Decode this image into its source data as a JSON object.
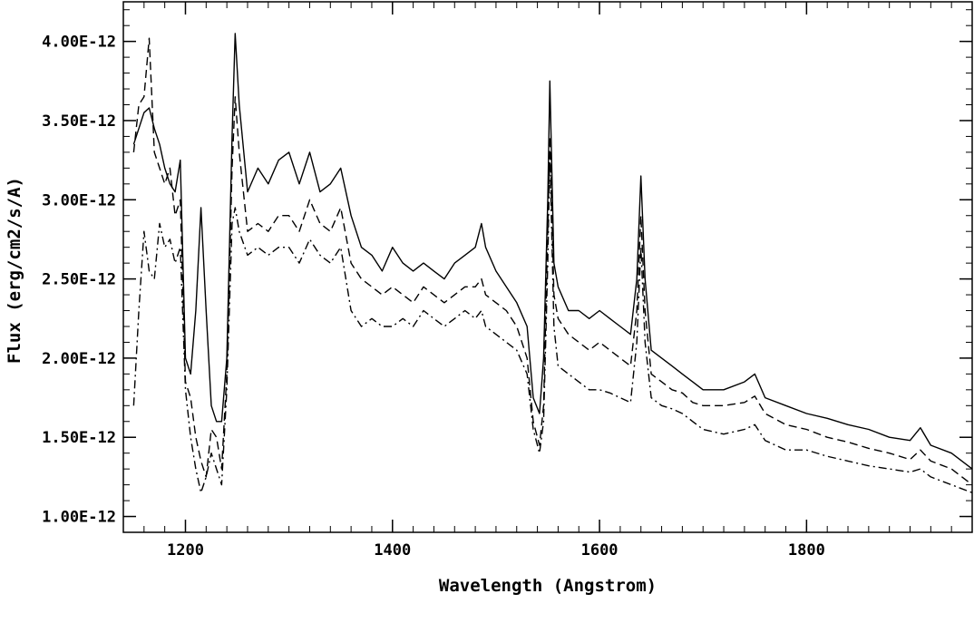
{
  "chart_data": {
    "type": "line",
    "title": "",
    "xlabel": "Wavelength (Angstrom)",
    "ylabel": "Flux (erg/cm2/s/A)",
    "xlim": [
      1140,
      1960
    ],
    "ylim": [
      9e-13,
      4.25e-12
    ],
    "x_ticks": [
      1200,
      1400,
      1600,
      1800
    ],
    "x_tick_labels": [
      "1200",
      "1400",
      "1600",
      "1800"
    ],
    "y_ticks": [
      1e-12,
      1.5e-12,
      2e-12,
      2.5e-12,
      3e-12,
      3.5e-12,
      4e-12
    ],
    "y_tick_labels": [
      "1.00E-12",
      "1.50E-12",
      "2.00E-12",
      "2.50E-12",
      "3.00E-12",
      "3.50E-12",
      "4.00E-12"
    ],
    "grid": false,
    "legend": "none",
    "series": [
      {
        "style": "solid",
        "x": [
          1150,
          1155,
          1160,
          1165,
          1170,
          1175,
          1180,
          1185,
          1190,
          1195,
          1200,
          1205,
          1210,
          1215,
          1220,
          1225,
          1230,
          1235,
          1240,
          1245,
          1248,
          1252,
          1260,
          1270,
          1280,
          1290,
          1300,
          1310,
          1320,
          1330,
          1340,
          1350,
          1360,
          1370,
          1380,
          1390,
          1400,
          1410,
          1420,
          1430,
          1440,
          1450,
          1460,
          1470,
          1480,
          1486,
          1490,
          1500,
          1510,
          1520,
          1530,
          1536,
          1542,
          1546,
          1550,
          1552,
          1556,
          1560,
          1570,
          1580,
          1590,
          1600,
          1610,
          1620,
          1630,
          1636,
          1640,
          1644,
          1650,
          1660,
          1670,
          1680,
          1690,
          1700,
          1720,
          1740,
          1750,
          1760,
          1780,
          1800,
          1820,
          1840,
          1860,
          1880,
          1900,
          1910,
          1920,
          1940,
          1960
        ],
        "y": [
          3.35e-12,
          3.45e-12,
          3.55e-12,
          3.58e-12,
          3.45e-12,
          3.35e-12,
          3.2e-12,
          3.1e-12,
          3.05e-12,
          3.25e-12,
          2e-12,
          1.9e-12,
          2.3e-12,
          2.95e-12,
          2.3e-12,
          1.7e-12,
          1.6e-12,
          1.6e-12,
          2e-12,
          3.4e-12,
          4.05e-12,
          3.6e-12,
          3.05e-12,
          3.2e-12,
          3.1e-12,
          3.25e-12,
          3.3e-12,
          3.1e-12,
          3.3e-12,
          3.05e-12,
          3.1e-12,
          3.2e-12,
          2.9e-12,
          2.7e-12,
          2.65e-12,
          2.55e-12,
          2.7e-12,
          2.6e-12,
          2.55e-12,
          2.6e-12,
          2.55e-12,
          2.5e-12,
          2.6e-12,
          2.65e-12,
          2.7e-12,
          2.85e-12,
          2.7e-12,
          2.55e-12,
          2.45e-12,
          2.35e-12,
          2.2e-12,
          1.75e-12,
          1.65e-12,
          2e-12,
          3e-12,
          3.75e-12,
          2.6e-12,
          2.45e-12,
          2.3e-12,
          2.3e-12,
          2.25e-12,
          2.3e-12,
          2.25e-12,
          2.2e-12,
          2.15e-12,
          2.5e-12,
          3.15e-12,
          2.5e-12,
          2.05e-12,
          2e-12,
          1.95e-12,
          1.9e-12,
          1.85e-12,
          1.8e-12,
          1.8e-12,
          1.85e-12,
          1.9e-12,
          1.75e-12,
          1.7e-12,
          1.65e-12,
          1.62e-12,
          1.58e-12,
          1.55e-12,
          1.5e-12,
          1.48e-12,
          1.56e-12,
          1.45e-12,
          1.4e-12,
          1.3e-12
        ]
      },
      {
        "style": "dashed",
        "x": [
          1150,
          1155,
          1160,
          1165,
          1170,
          1175,
          1180,
          1185,
          1190,
          1195,
          1200,
          1205,
          1210,
          1215,
          1220,
          1225,
          1230,
          1235,
          1240,
          1245,
          1248,
          1252,
          1260,
          1270,
          1280,
          1290,
          1300,
          1310,
          1320,
          1330,
          1340,
          1350,
          1360,
          1370,
          1380,
          1390,
          1400,
          1410,
          1420,
          1430,
          1440,
          1450,
          1460,
          1470,
          1480,
          1486,
          1490,
          1500,
          1510,
          1520,
          1530,
          1536,
          1542,
          1546,
          1550,
          1552,
          1556,
          1560,
          1570,
          1580,
          1590,
          1600,
          1610,
          1620,
          1630,
          1636,
          1640,
          1644,
          1650,
          1660,
          1670,
          1680,
          1690,
          1700,
          1720,
          1740,
          1750,
          1760,
          1780,
          1800,
          1820,
          1840,
          1860,
          1880,
          1900,
          1910,
          1920,
          1940,
          1960
        ],
        "y": [
          3.3e-12,
          3.6e-12,
          3.65e-12,
          4.02e-12,
          3.3e-12,
          3.2e-12,
          3.1e-12,
          3.2e-12,
          2.9e-12,
          3e-12,
          1.85e-12,
          1.75e-12,
          1.5e-12,
          1.35e-12,
          1.25e-12,
          1.55e-12,
          1.5e-12,
          1.3e-12,
          1.9e-12,
          3.2e-12,
          3.65e-12,
          3.3e-12,
          2.8e-12,
          2.85e-12,
          2.8e-12,
          2.9e-12,
          2.9e-12,
          2.8e-12,
          3e-12,
          2.85e-12,
          2.8e-12,
          2.95e-12,
          2.6e-12,
          2.5e-12,
          2.45e-12,
          2.4e-12,
          2.45e-12,
          2.4e-12,
          2.35e-12,
          2.45e-12,
          2.4e-12,
          2.35e-12,
          2.4e-12,
          2.45e-12,
          2.45e-12,
          2.5e-12,
          2.4e-12,
          2.35e-12,
          2.3e-12,
          2.2e-12,
          2e-12,
          1.6e-12,
          1.45e-12,
          1.7e-12,
          2.8e-12,
          3.4e-12,
          2.4e-12,
          2.25e-12,
          2.15e-12,
          2.1e-12,
          2.05e-12,
          2.1e-12,
          2.05e-12,
          2e-12,
          1.95e-12,
          2.3e-12,
          2.9e-12,
          2.3e-12,
          1.9e-12,
          1.85e-12,
          1.8e-12,
          1.78e-12,
          1.72e-12,
          1.7e-12,
          1.7e-12,
          1.72e-12,
          1.76e-12,
          1.65e-12,
          1.58e-12,
          1.55e-12,
          1.5e-12,
          1.47e-12,
          1.43e-12,
          1.4e-12,
          1.36e-12,
          1.42e-12,
          1.35e-12,
          1.3e-12,
          1.2e-12
        ]
      },
      {
        "style": "dash-dot",
        "x": [
          1150,
          1155,
          1160,
          1165,
          1170,
          1175,
          1180,
          1185,
          1190,
          1195,
          1200,
          1205,
          1210,
          1215,
          1220,
          1225,
          1230,
          1235,
          1240,
          1245,
          1248,
          1252,
          1260,
          1270,
          1280,
          1290,
          1300,
          1310,
          1320,
          1330,
          1340,
          1350,
          1360,
          1370,
          1380,
          1390,
          1400,
          1410,
          1420,
          1430,
          1440,
          1450,
          1460,
          1470,
          1480,
          1486,
          1490,
          1500,
          1510,
          1520,
          1530,
          1536,
          1542,
          1546,
          1550,
          1552,
          1556,
          1560,
          1570,
          1580,
          1590,
          1600,
          1610,
          1620,
          1630,
          1636,
          1640,
          1644,
          1650,
          1660,
          1670,
          1680,
          1690,
          1700,
          1720,
          1740,
          1750,
          1760,
          1780,
          1800,
          1820,
          1840,
          1860,
          1880,
          1900,
          1910,
          1920,
          1940,
          1960
        ],
        "y": [
          1.7e-12,
          2.3e-12,
          2.8e-12,
          2.55e-12,
          2.5e-12,
          2.85e-12,
          2.7e-12,
          2.75e-12,
          2.6e-12,
          2.7e-12,
          1.8e-12,
          1.5e-12,
          1.3e-12,
          1.15e-12,
          1.25e-12,
          1.4e-12,
          1.3e-12,
          1.2e-12,
          1.8e-12,
          2.85e-12,
          2.95e-12,
          2.8e-12,
          2.65e-12,
          2.7e-12,
          2.65e-12,
          2.7e-12,
          2.7e-12,
          2.6e-12,
          2.75e-12,
          2.65e-12,
          2.6e-12,
          2.7e-12,
          2.3e-12,
          2.2e-12,
          2.25e-12,
          2.2e-12,
          2.2e-12,
          2.25e-12,
          2.2e-12,
          2.3e-12,
          2.25e-12,
          2.2e-12,
          2.25e-12,
          2.3e-12,
          2.25e-12,
          2.3e-12,
          2.2e-12,
          2.15e-12,
          2.1e-12,
          2.05e-12,
          1.9e-12,
          1.55e-12,
          1.4e-12,
          1.6e-12,
          2.6e-12,
          3.3e-12,
          2.2e-12,
          1.95e-12,
          1.9e-12,
          1.85e-12,
          1.8e-12,
          1.8e-12,
          1.78e-12,
          1.75e-12,
          1.72e-12,
          2.1e-12,
          2.7e-12,
          2.1e-12,
          1.75e-12,
          1.7e-12,
          1.68e-12,
          1.65e-12,
          1.6e-12,
          1.55e-12,
          1.52e-12,
          1.55e-12,
          1.58e-12,
          1.48e-12,
          1.42e-12,
          1.42e-12,
          1.38e-12,
          1.35e-12,
          1.32e-12,
          1.3e-12,
          1.28e-12,
          1.3e-12,
          1.25e-12,
          1.2e-12,
          1.15e-12
        ]
      }
    ]
  }
}
